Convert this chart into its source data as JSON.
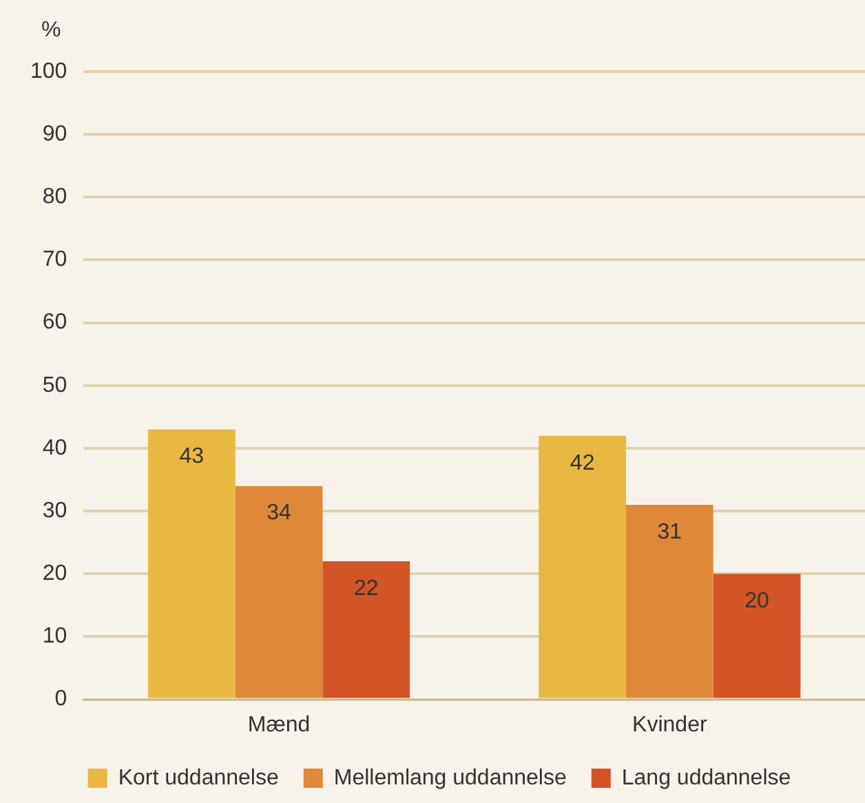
{
  "chart_data": {
    "type": "bar",
    "ylabel": "%",
    "categories": [
      "Mænd",
      "Kvinder"
    ],
    "series": [
      {
        "name": "Kort uddannelse",
        "color": "#e8b840",
        "values": [
          43,
          42
        ]
      },
      {
        "name": "Mellemlang uddannelse",
        "color": "#e0883a",
        "values": [
          34,
          31
        ]
      },
      {
        "name": "Lang uddannelse",
        "color": "#d35426",
        "values": [
          22,
          20
        ]
      }
    ],
    "ylim": [
      0,
      100
    ],
    "yticks": [
      0,
      10,
      20,
      30,
      40,
      50,
      60,
      70,
      80,
      90,
      100
    ],
    "grid": "y",
    "legend": "bottom",
    "data_labels": true
  }
}
